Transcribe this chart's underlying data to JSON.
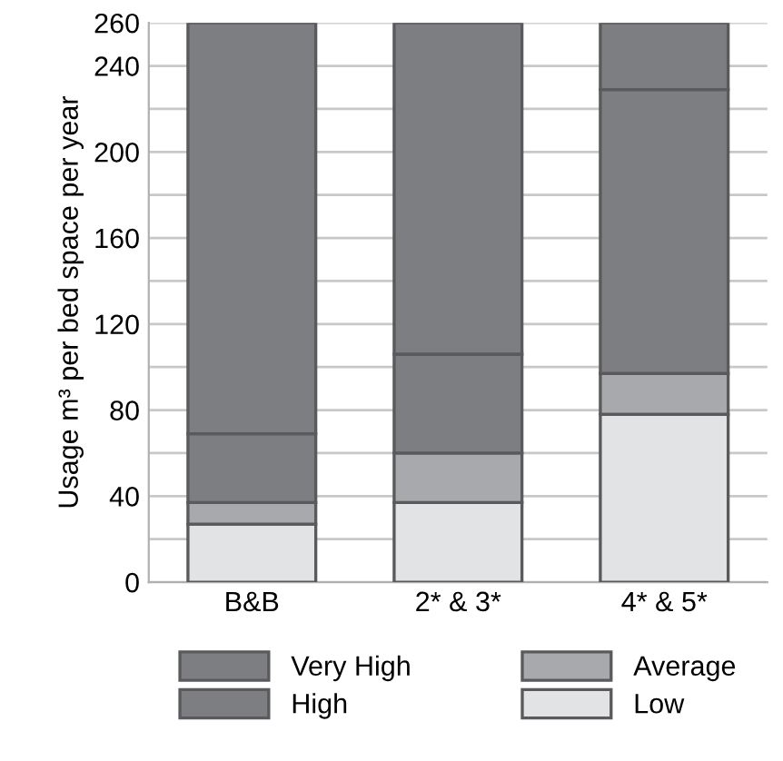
{
  "chart_data": {
    "type": "bar",
    "stacked": true,
    "ylabel": "Usage m³ per bed space per year",
    "categories": [
      "B&B",
      "2* & 3*",
      "4* & 5*"
    ],
    "series": [
      {
        "name": "Low",
        "color": "#e2e3e4",
        "values": [
          27,
          37,
          78
        ]
      },
      {
        "name": "Average",
        "color": "#a8a9ac",
        "values": [
          10,
          23,
          19
        ]
      },
      {
        "name": "High",
        "color": "#7d7e82",
        "values": [
          32,
          46,
          132
        ]
      },
      {
        "name": "Very High",
        "color": "#7d7e82",
        "values": [
          191,
          154,
          31
        ]
      }
    ],
    "ylim": [
      0,
      260
    ],
    "yticks": [
      0,
      {
        "value": 20,
        "label": null
      },
      40,
      {
        "value": 60,
        "label": null
      },
      80,
      {
        "value": 100,
        "label": null
      },
      120,
      {
        "value": 140,
        "label": null
      },
      160,
      {
        "value": 180,
        "label": null
      },
      200,
      {
        "value": 220,
        "label": null
      },
      240,
      {
        "value": 260,
        "label": "260"
      }
    ],
    "grid": "y",
    "legend": "bottom"
  }
}
